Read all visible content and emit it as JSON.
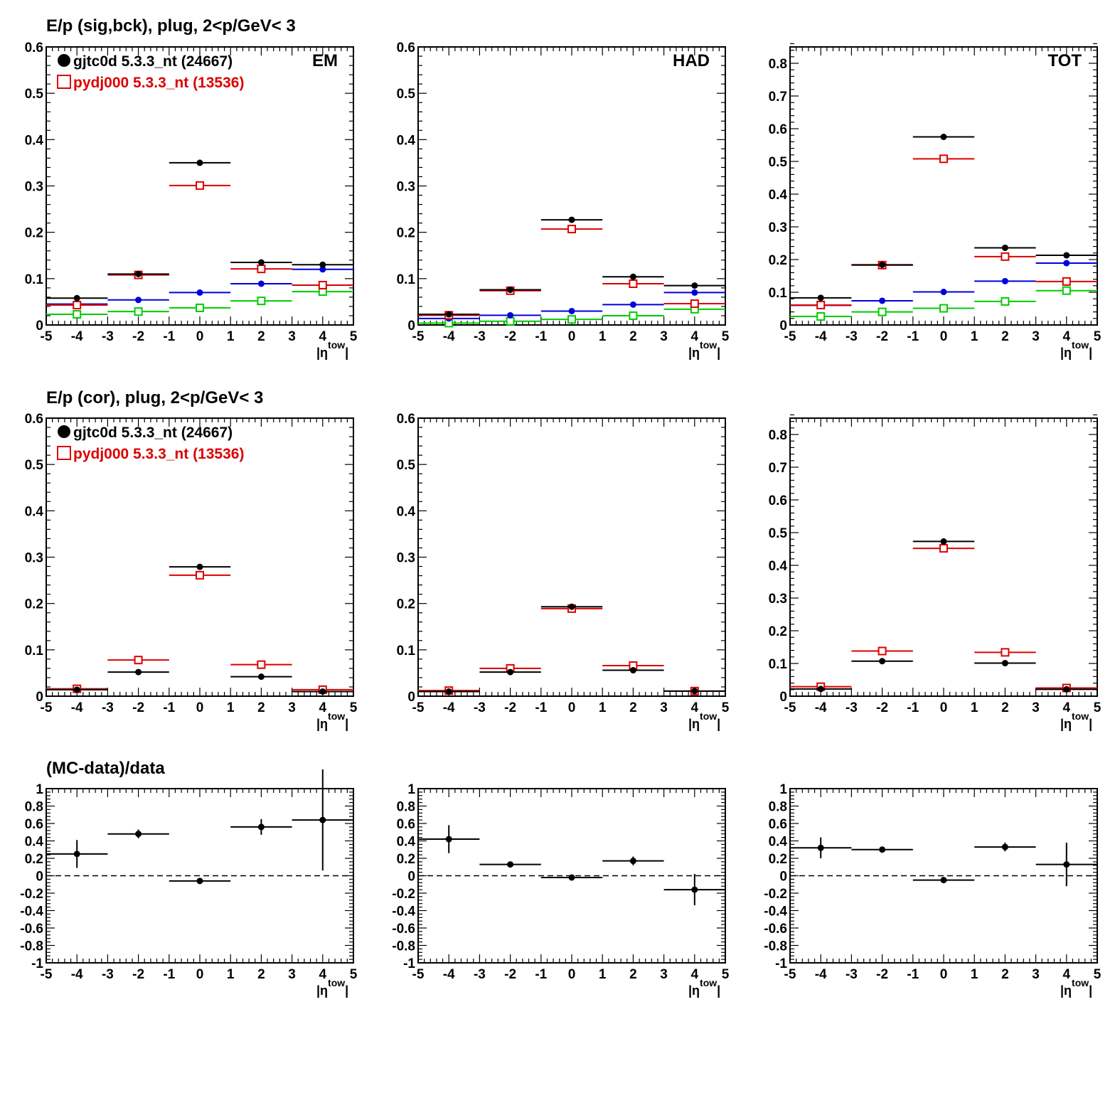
{
  "row_titles": [
    "E/p (sig,bck), plug,  2<p/GeV< 3",
    "E/p (cor), plug,  2<p/GeV< 3",
    "(MC-data)/data"
  ],
  "legend": {
    "data_label": "gjtc0d 5.3.3_nt (24667)",
    "mc_label": "pydj000 5.3.3_nt (13536)"
  },
  "colors": {
    "data": "#000000",
    "mc": "#dd0000",
    "blue": "#0000dd",
    "green": "#00cc00"
  },
  "xlabel": {
    "base": "|η",
    "sup": "tow",
    "close": "|"
  },
  "chart_data": [
    {
      "type": "scatter",
      "row": 0,
      "col": 0,
      "tag": "EM",
      "legend": true,
      "xlim": [
        -5,
        5
      ],
      "ylim": [
        0,
        0.6
      ],
      "xticks": [
        "-5",
        "-4",
        "-3",
        "-2",
        "-1",
        "0",
        "1",
        "2",
        "3",
        "4",
        "5"
      ],
      "yticks": [
        "0",
        "0.1",
        "0.2",
        "0.3",
        "0.4",
        "0.5",
        "0.6"
      ],
      "x": [
        -4,
        -2,
        0,
        2,
        4
      ],
      "series": [
        {
          "name": "gjtc0d 5.3.3_nt (24667)",
          "color": "#000000",
          "marker": "filled-circle",
          "values": [
            0.058,
            0.11,
            0.35,
            0.135,
            0.13
          ]
        },
        {
          "name": "pydj000 5.3.3_nt (13536)",
          "color": "#dd0000",
          "marker": "open-square",
          "values": [
            0.043,
            0.108,
            0.301,
            0.121,
            0.086
          ]
        },
        {
          "color": "#0000dd",
          "marker": "filled-circle",
          "values": [
            0.045,
            0.054,
            0.07,
            0.089,
            0.12
          ]
        },
        {
          "color": "#00cc00",
          "marker": "open-square",
          "values": [
            0.023,
            0.029,
            0.037,
            0.052,
            0.072
          ]
        }
      ]
    },
    {
      "type": "scatter",
      "row": 0,
      "col": 1,
      "tag": "HAD",
      "legend": false,
      "xlim": [
        -5,
        5
      ],
      "ylim": [
        0,
        0.6
      ],
      "xticks": [
        "-5",
        "-4",
        "-3",
        "-2",
        "-1",
        "0",
        "1",
        "2",
        "3",
        "4",
        "5"
      ],
      "yticks": [
        "0",
        "0.1",
        "0.2",
        "0.3",
        "0.4",
        "0.5",
        "0.6"
      ],
      "x": [
        -4,
        -2,
        0,
        2,
        4
      ],
      "series": [
        {
          "color": "#000000",
          "marker": "filled-circle",
          "values": [
            0.023,
            0.076,
            0.227,
            0.104,
            0.085
          ]
        },
        {
          "color": "#dd0000",
          "marker": "open-square",
          "values": [
            0.021,
            0.074,
            0.207,
            0.089,
            0.046
          ]
        },
        {
          "color": "#0000dd",
          "marker": "filled-circle",
          "values": [
            0.014,
            0.021,
            0.03,
            0.044,
            0.07
          ]
        },
        {
          "color": "#00cc00",
          "marker": "open-square",
          "values": [
            0.004,
            0.008,
            0.012,
            0.02,
            0.034
          ]
        }
      ]
    },
    {
      "type": "scatter",
      "row": 0,
      "col": 2,
      "tag": "TOT",
      "legend": false,
      "xlim": [
        -5,
        5
      ],
      "ylim": [
        0,
        0.85
      ],
      "xticks": [
        "-5",
        "-4",
        "-3",
        "-2",
        "-1",
        "0",
        "1",
        "2",
        "3",
        "4",
        "5"
      ],
      "yticks": [
        "0",
        "0.1",
        "0.2",
        "0.3",
        "0.4",
        "0.5",
        "0.6",
        "0.7",
        "0.8"
      ],
      "x": [
        -4,
        -2,
        0,
        2,
        4
      ],
      "series": [
        {
          "color": "#000000",
          "marker": "filled-circle",
          "values": [
            0.083,
            0.184,
            0.575,
            0.236,
            0.213
          ]
        },
        {
          "color": "#dd0000",
          "marker": "open-square",
          "values": [
            0.061,
            0.183,
            0.508,
            0.209,
            0.133
          ]
        },
        {
          "color": "#0000dd",
          "marker": "filled-circle",
          "values": [
            0.06,
            0.074,
            0.101,
            0.134,
            0.189
          ]
        },
        {
          "color": "#00cc00",
          "marker": "open-square",
          "values": [
            0.026,
            0.04,
            0.051,
            0.072,
            0.105
          ]
        }
      ]
    },
    {
      "type": "scatter",
      "row": 1,
      "col": 0,
      "tag": "",
      "legend": true,
      "xlim": [
        -5,
        5
      ],
      "ylim": [
        0,
        0.6
      ],
      "xticks": [
        "-5",
        "-4",
        "-3",
        "-2",
        "-1",
        "0",
        "1",
        "2",
        "3",
        "4",
        "5"
      ],
      "yticks": [
        "0",
        "0.1",
        "0.2",
        "0.3",
        "0.4",
        "0.5",
        "0.6"
      ],
      "x": [
        -4,
        -2,
        0,
        2,
        4
      ],
      "series": [
        {
          "name": "gjtc0d 5.3.3_nt (24667)",
          "color": "#000000",
          "marker": "filled-circle",
          "values": [
            0.014,
            0.052,
            0.279,
            0.042,
            0.01
          ]
        },
        {
          "name": "pydj000 5.3.3_nt (13536)",
          "color": "#dd0000",
          "marker": "open-square",
          "values": [
            0.016,
            0.078,
            0.261,
            0.068,
            0.014
          ]
        }
      ]
    },
    {
      "type": "scatter",
      "row": 1,
      "col": 1,
      "tag": "",
      "legend": false,
      "xlim": [
        -5,
        5
      ],
      "ylim": [
        0,
        0.6
      ],
      "xticks": [
        "-5",
        "-4",
        "-3",
        "-2",
        "-1",
        "0",
        "1",
        "2",
        "3",
        "4",
        "5"
      ],
      "yticks": [
        "0",
        "0.1",
        "0.2",
        "0.3",
        "0.4",
        "0.5",
        "0.6"
      ],
      "x": [
        -4,
        -2,
        0,
        2,
        4
      ],
      "series": [
        {
          "color": "#000000",
          "marker": "filled-circle",
          "values": [
            0.01,
            0.052,
            0.193,
            0.056,
            0.011
          ]
        },
        {
          "color": "#dd0000",
          "marker": "open-square",
          "values": [
            0.012,
            0.06,
            0.189,
            0.066,
            0.011
          ]
        }
      ]
    },
    {
      "type": "scatter",
      "row": 1,
      "col": 2,
      "tag": "",
      "legend": false,
      "xlim": [
        -5,
        5
      ],
      "ylim": [
        0,
        0.85
      ],
      "xticks": [
        "-5",
        "-4",
        "-3",
        "-2",
        "-1",
        "0",
        "1",
        "2",
        "3",
        "4",
        "5"
      ],
      "yticks": [
        "0",
        "0.1",
        "0.2",
        "0.3",
        "0.4",
        "0.5",
        "0.6",
        "0.7",
        "0.8"
      ],
      "x": [
        -4,
        -2,
        0,
        2,
        4
      ],
      "series": [
        {
          "color": "#000000",
          "marker": "filled-circle",
          "values": [
            0.022,
            0.107,
            0.473,
            0.101,
            0.021
          ]
        },
        {
          "color": "#dd0000",
          "marker": "open-square",
          "values": [
            0.029,
            0.138,
            0.452,
            0.134,
            0.025
          ]
        }
      ]
    },
    {
      "type": "scatter",
      "row": 2,
      "col": 0,
      "tag": "",
      "legend": false,
      "xlim": [
        -5,
        5
      ],
      "ylim": [
        -1,
        1
      ],
      "zero_line": true,
      "xticks": [
        "-5",
        "-4",
        "-3",
        "-2",
        "-1",
        "0",
        "1",
        "2",
        "3",
        "4",
        "5"
      ],
      "yticks": [
        "-1",
        "-0.8",
        "-0.6",
        "-0.4",
        "-0.2",
        "0",
        "0.2",
        "0.4",
        "0.6",
        "0.8",
        "1"
      ],
      "x": [
        -4,
        -2,
        0,
        2,
        4
      ],
      "series": [
        {
          "color": "#000000",
          "marker": "filled-circle",
          "values": [
            0.25,
            0.48,
            -0.06,
            0.56,
            0.64
          ],
          "errors": [
            0.16,
            0.05,
            0.02,
            0.09,
            0.58
          ]
        }
      ]
    },
    {
      "type": "scatter",
      "row": 2,
      "col": 1,
      "tag": "",
      "legend": false,
      "xlim": [
        -5,
        5
      ],
      "ylim": [
        -1,
        1
      ],
      "zero_line": true,
      "xticks": [
        "-5",
        "-4",
        "-3",
        "-2",
        "-1",
        "0",
        "1",
        "2",
        "3",
        "4",
        "5"
      ],
      "yticks": [
        "-1",
        "-0.8",
        "-0.6",
        "-0.4",
        "-0.2",
        "0",
        "0.2",
        "0.4",
        "0.6",
        "0.8",
        "1"
      ],
      "x": [
        -4,
        -2,
        0,
        2,
        4
      ],
      "series": [
        {
          "color": "#000000",
          "marker": "filled-circle",
          "values": [
            0.42,
            0.13,
            -0.02,
            0.17,
            -0.16
          ],
          "errors": [
            0.16,
            0.03,
            0.02,
            0.05,
            0.18
          ]
        }
      ]
    },
    {
      "type": "scatter",
      "row": 2,
      "col": 2,
      "tag": "",
      "legend": false,
      "xlim": [
        -5,
        5
      ],
      "ylim": [
        -1,
        1
      ],
      "zero_line": true,
      "xticks": [
        "-5",
        "-4",
        "-3",
        "-2",
        "-1",
        "0",
        "1",
        "2",
        "3",
        "4",
        "5"
      ],
      "yticks": [
        "-1",
        "-0.8",
        "-0.6",
        "-0.4",
        "-0.2",
        "0",
        "0.2",
        "0.4",
        "0.6",
        "0.8",
        "1"
      ],
      "x": [
        -4,
        -2,
        0,
        2,
        4
      ],
      "series": [
        {
          "color": "#000000",
          "marker": "filled-circle",
          "values": [
            0.32,
            0.3,
            -0.05,
            0.33,
            0.13
          ],
          "errors": [
            0.12,
            0.02,
            0.02,
            0.05,
            0.25
          ]
        }
      ]
    }
  ]
}
